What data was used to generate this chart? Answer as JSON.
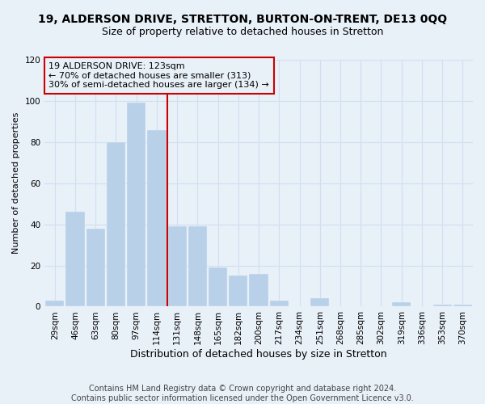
{
  "title": "19, ALDERSON DRIVE, STRETTON, BURTON-ON-TRENT, DE13 0QQ",
  "subtitle": "Size of property relative to detached houses in Stretton",
  "xlabel": "Distribution of detached houses by size in Stretton",
  "ylabel": "Number of detached properties",
  "categories": [
    "29sqm",
    "46sqm",
    "63sqm",
    "80sqm",
    "97sqm",
    "114sqm",
    "131sqm",
    "148sqm",
    "165sqm",
    "182sqm",
    "200sqm",
    "217sqm",
    "234sqm",
    "251sqm",
    "268sqm",
    "285sqm",
    "302sqm",
    "319sqm",
    "336sqm",
    "353sqm",
    "370sqm"
  ],
  "values": [
    3,
    46,
    38,
    80,
    99,
    86,
    39,
    39,
    19,
    15,
    16,
    3,
    0,
    4,
    0,
    0,
    0,
    2,
    0,
    1,
    1
  ],
  "bar_color": "#b8d0e8",
  "grid_color": "#d0dff0",
  "background_color": "#e8f0f8",
  "vline_color": "#cc0000",
  "annotation_text": "19 ALDERSON DRIVE: 123sqm\n← 70% of detached houses are smaller (313)\n30% of semi-detached houses are larger (134) →",
  "annotation_box_edge": "#cc0000",
  "ylim": [
    0,
    120
  ],
  "yticks": [
    0,
    20,
    40,
    60,
    80,
    100,
    120
  ],
  "footer": "Contains HM Land Registry data © Crown copyright and database right 2024.\nContains public sector information licensed under the Open Government Licence v3.0.",
  "title_fontsize": 10,
  "subtitle_fontsize": 9,
  "xlabel_fontsize": 9,
  "ylabel_fontsize": 8,
  "tick_fontsize": 7.5,
  "annotation_fontsize": 8,
  "footer_fontsize": 7
}
